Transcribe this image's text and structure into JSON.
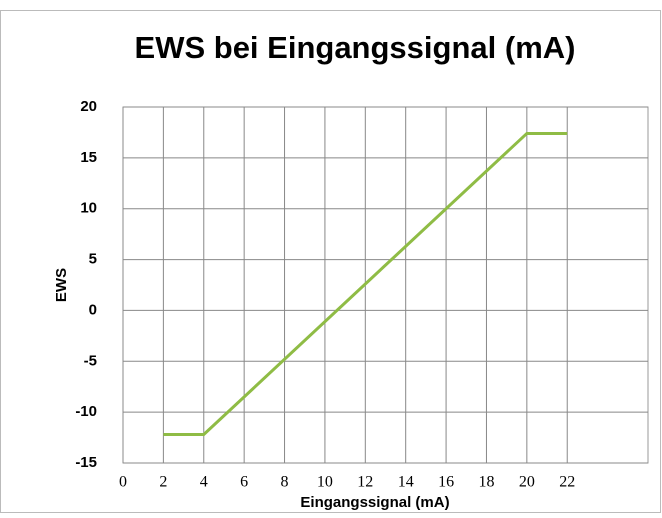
{
  "chart_data": {
    "type": "line",
    "title": "EWS bei Eingangssignal (mA)",
    "x_label": "Eingangssignal (mA)",
    "y_label": "EWS",
    "series": [
      {
        "name": "EWS",
        "color": "#8fbc45",
        "x": [
          2,
          4,
          20,
          22
        ],
        "values": [
          -12.2,
          -12.2,
          17.4,
          17.4
        ]
      }
    ],
    "xlim": [
      0,
      26
    ],
    "xticks": [
      0,
      2,
      4,
      6,
      8,
      10,
      12,
      14,
      16,
      18,
      20,
      22
    ],
    "ylim": [
      -15,
      20
    ],
    "yticks": [
      -15,
      -10,
      -5,
      0,
      5,
      10,
      15,
      20
    ],
    "grid": true
  }
}
